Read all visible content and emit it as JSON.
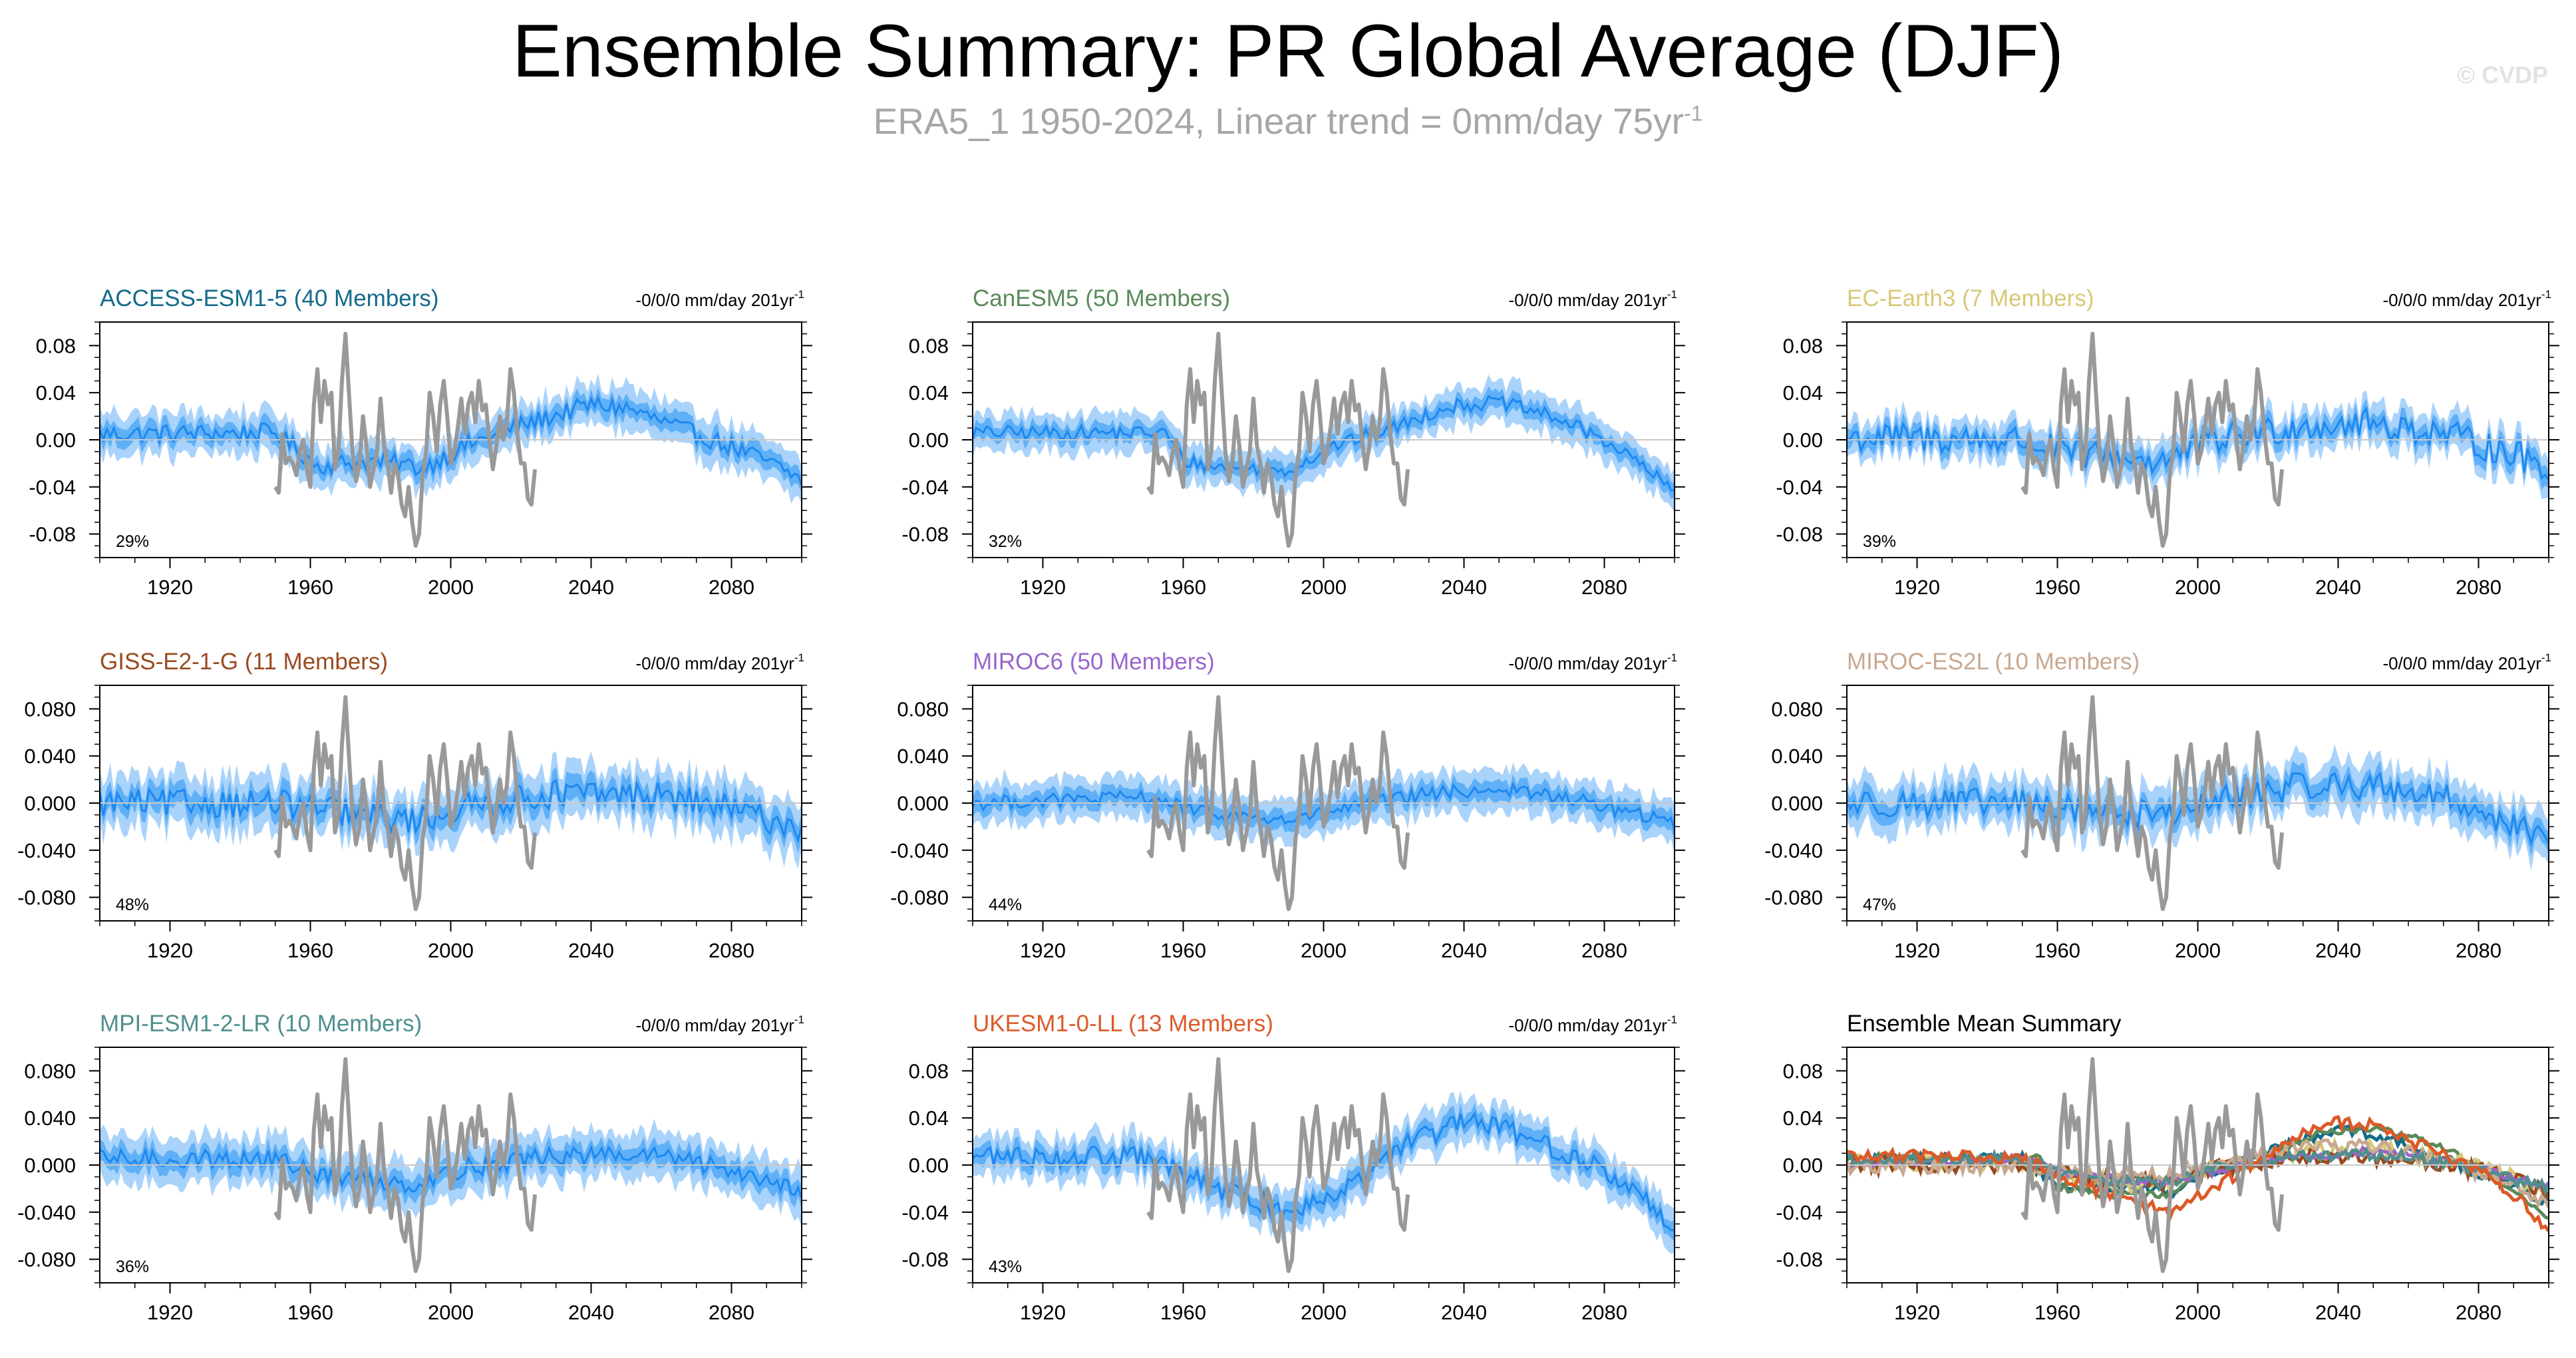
{
  "header": {
    "title": "Ensemble Summary: PR Global Average (DJF)",
    "subtitle": "ERA5_1 1950-2024, Linear trend = 0mm/day 75yr",
    "subtitle_sup": "-1",
    "watermark": "© CVDP"
  },
  "colors": {
    "outer_band": "#a9d3fb",
    "inner_band": "#5fb0f7",
    "ensemble_mean": "#1e88f0",
    "observations": "#999999",
    "zero_line": "#c8c8c8"
  },
  "chart_data": [
    {
      "type": "line",
      "title": "ACCESS-ESM1-5 (40 Members)",
      "title_color": "#146b8a",
      "trend_label": "-0/0/0 mm/day 201yr",
      "trend_sup": "-1",
      "percent": "29%",
      "ylim": [
        -0.1,
        0.1
      ],
      "xlim": [
        1900,
        2100
      ],
      "yticks": [
        "0.08",
        "0.04",
        "0.00",
        "-0.04",
        "-0.08"
      ],
      "ytick_values": [
        0.08,
        0.04,
        0,
        -0.04,
        -0.08
      ],
      "xticks": [
        "1920",
        "1960",
        "2000",
        "2040",
        "2080"
      ],
      "curve": [
        [
          1900,
          0.005
        ],
        [
          1950,
          0.006
        ],
        [
          1957,
          -0.01
        ],
        [
          1962,
          -0.022
        ],
        [
          1975,
          -0.018
        ],
        [
          1985,
          -0.02
        ],
        [
          1992,
          -0.024
        ],
        [
          2005,
          -0.004
        ],
        [
          2020,
          0.012
        ],
        [
          2040,
          0.03
        ],
        [
          2050,
          0.027
        ],
        [
          2065,
          0.01
        ],
        [
          2080,
          -0.006
        ],
        [
          2090,
          -0.018
        ],
        [
          2100,
          -0.034
        ]
      ],
      "noise": 0.008,
      "inner": 0.008,
      "outer": 0.018
    },
    {
      "type": "line",
      "title": "CanESM5 (50 Members)",
      "title_color": "#5a8a5a",
      "trend_label": "-0/0/0 mm/day 201yr",
      "trend_sup": "-1",
      "percent": "32%",
      "ylim": [
        -0.1,
        0.1
      ],
      "xlim": [
        1900,
        2100
      ],
      "yticks": [
        "0.08",
        "0.04",
        "0.00",
        "-0.04",
        "-0.08"
      ],
      "ytick_values": [
        0.08,
        0.04,
        0,
        -0.04,
        -0.08
      ],
      "xticks": [
        "1920",
        "1960",
        "2000",
        "2040",
        "2080"
      ],
      "curve": [
        [
          1900,
          0.006
        ],
        [
          1955,
          0.006
        ],
        [
          1960,
          -0.018
        ],
        [
          1975,
          -0.025
        ],
        [
          1990,
          -0.026
        ],
        [
          2003,
          -0.005
        ],
        [
          2020,
          0.01
        ],
        [
          2035,
          0.028
        ],
        [
          2050,
          0.032
        ],
        [
          2065,
          0.02
        ],
        [
          2080,
          0.0
        ],
        [
          2090,
          -0.02
        ],
        [
          2100,
          -0.045
        ]
      ],
      "noise": 0.006,
      "inner": 0.007,
      "outer": 0.016
    },
    {
      "type": "line",
      "title": "EC-Earth3 (7 Members)",
      "title_color": "#d8c878",
      "trend_label": "-0/0/0 mm/day 201yr",
      "trend_sup": "-1",
      "percent": "39%",
      "ylim": [
        -0.1,
        0.1
      ],
      "xlim": [
        1900,
        2100
      ],
      "yticks": [
        "0.08",
        "0.04",
        "0.00",
        "-0.04",
        "-0.08"
      ],
      "ytick_values": [
        0.08,
        0.04,
        0,
        -0.04,
        -0.08
      ],
      "xticks": [
        "1920",
        "1960",
        "2000",
        "2040",
        "2080"
      ],
      "curve": [
        [
          1900,
          0.002
        ],
        [
          1950,
          0.0
        ],
        [
          1960,
          -0.01
        ],
        [
          1990,
          -0.018
        ],
        [
          2005,
          0.0
        ],
        [
          2030,
          0.012
        ],
        [
          2050,
          0.014
        ],
        [
          2070,
          0.005
        ],
        [
          2090,
          -0.012
        ],
        [
          2100,
          -0.025
        ]
      ],
      "noise": 0.013,
      "inner": 0.008,
      "outer": 0.016
    },
    {
      "type": "line",
      "title": "GISS-E2-1-G (11 Members)",
      "title_color": "#9a4a1e",
      "trend_label": "-0/0/0 mm/day 201yr",
      "trend_sup": "-1",
      "percent": "48%",
      "ylim": [
        -0.1,
        0.1
      ],
      "xlim": [
        1900,
        2100
      ],
      "yticks": [
        "0.080",
        "0.040",
        "0.000",
        "-0.040",
        "-0.080"
      ],
      "ytick_values": [
        0.08,
        0.04,
        0,
        -0.04,
        -0.08
      ],
      "xticks": [
        "1920",
        "1960",
        "2000",
        "2040",
        "2080"
      ],
      "curve": [
        [
          1900,
          0.0
        ],
        [
          1950,
          0.0
        ],
        [
          1970,
          -0.008
        ],
        [
          1990,
          -0.015
        ],
        [
          2010,
          0.0
        ],
        [
          2030,
          0.008
        ],
        [
          2060,
          0.006
        ],
        [
          2080,
          -0.005
        ],
        [
          2100,
          -0.022
        ]
      ],
      "noise": 0.012,
      "inner": 0.01,
      "outer": 0.022
    },
    {
      "type": "line",
      "title": "MIROC6 (50 Members)",
      "title_color": "#9a64cc",
      "trend_label": "-0/0/0 mm/day 201yr",
      "trend_sup": "-1",
      "percent": "44%",
      "ylim": [
        -0.1,
        0.1
      ],
      "xlim": [
        1900,
        2100
      ],
      "yticks": [
        "0.080",
        "0.040",
        "0.000",
        "-0.040",
        "-0.080"
      ],
      "ytick_values": [
        0.08,
        0.04,
        0,
        -0.04,
        -0.08
      ],
      "xticks": [
        "1920",
        "1960",
        "2000",
        "2040",
        "2080"
      ],
      "curve": [
        [
          1900,
          0.0
        ],
        [
          1950,
          0.005
        ],
        [
          1965,
          -0.008
        ],
        [
          1990,
          -0.015
        ],
        [
          2010,
          -0.002
        ],
        [
          2030,
          0.008
        ],
        [
          2050,
          0.012
        ],
        [
          2070,
          0.004
        ],
        [
          2090,
          -0.01
        ],
        [
          2100,
          -0.018
        ]
      ],
      "noise": 0.006,
      "inner": 0.008,
      "outer": 0.018
    },
    {
      "type": "line",
      "title": "MIROC-ES2L (10 Members)",
      "title_color": "#c8a890",
      "trend_label": "-0/0/0 mm/day 201yr",
      "trend_sup": "-1",
      "percent": "47%",
      "ylim": [
        -0.1,
        0.1
      ],
      "xlim": [
        1900,
        2100
      ],
      "yticks": [
        "0.080",
        "0.040",
        "0.000",
        "-0.040",
        "-0.080"
      ],
      "ytick_values": [
        0.08,
        0.04,
        0,
        -0.04,
        -0.08
      ],
      "xticks": [
        "1920",
        "1960",
        "2000",
        "2040",
        "2080"
      ],
      "curve": [
        [
          1900,
          0.0
        ],
        [
          1950,
          0.0
        ],
        [
          1965,
          -0.006
        ],
        [
          1990,
          -0.01
        ],
        [
          2010,
          0.005
        ],
        [
          2030,
          0.015
        ],
        [
          2050,
          0.015
        ],
        [
          2070,
          0.005
        ],
        [
          2090,
          -0.018
        ],
        [
          2100,
          -0.035
        ]
      ],
      "noise": 0.012,
      "inner": 0.009,
      "outer": 0.02
    },
    {
      "type": "line",
      "title": "MPI-ESM1-2-LR (10 Members)",
      "title_color": "#4f8f8f",
      "trend_label": "-0/0/0 mm/day 201yr",
      "trend_sup": "-1",
      "percent": "36%",
      "ylim": [
        -0.1,
        0.1
      ],
      "xlim": [
        1900,
        2100
      ],
      "yticks": [
        "0.080",
        "0.040",
        "0.000",
        "-0.040",
        "-0.080"
      ],
      "ytick_values": [
        0.08,
        0.04,
        0,
        -0.04,
        -0.08
      ],
      "xticks": [
        "1920",
        "1960",
        "2000",
        "2040",
        "2080"
      ],
      "curve": [
        [
          1900,
          0.005
        ],
        [
          1950,
          0.005
        ],
        [
          1965,
          -0.01
        ],
        [
          1990,
          -0.016
        ],
        [
          2005,
          -0.002
        ],
        [
          2030,
          0.008
        ],
        [
          2060,
          0.008
        ],
        [
          2085,
          -0.008
        ],
        [
          2100,
          -0.02
        ]
      ],
      "noise": 0.008,
      "inner": 0.009,
      "outer": 0.02
    },
    {
      "type": "line",
      "title": "UKESM1-0-LL (13 Members)",
      "title_color": "#dc5a28",
      "trend_label": "-0/0/0 mm/day 201yr",
      "trend_sup": "-1",
      "percent": "43%",
      "ylim": [
        -0.1,
        0.1
      ],
      "xlim": [
        1900,
        2100
      ],
      "yticks": [
        "0.08",
        "0.04",
        "0.00",
        "-0.04",
        "-0.08"
      ],
      "ytick_values": [
        0.08,
        0.04,
        0,
        -0.04,
        -0.08
      ],
      "xticks": [
        "1920",
        "1960",
        "2000",
        "2040",
        "2080"
      ],
      "curve": [
        [
          1900,
          0.008
        ],
        [
          1950,
          0.006
        ],
        [
          1965,
          -0.015
        ],
        [
          1985,
          -0.035
        ],
        [
          1992,
          -0.04
        ],
        [
          2010,
          -0.01
        ],
        [
          2025,
          0.02
        ],
        [
          2040,
          0.036
        ],
        [
          2050,
          0.033
        ],
        [
          2065,
          0.015
        ],
        [
          2080,
          -0.005
        ],
        [
          2090,
          -0.025
        ],
        [
          2100,
          -0.055
        ]
      ],
      "noise": 0.009,
      "inner": 0.008,
      "outer": 0.018
    },
    {
      "type": "line",
      "title": "Ensemble Mean Summary",
      "title_color": "#000000",
      "trend_label": "",
      "trend_sup": "",
      "percent": "",
      "ylim": [
        -0.1,
        0.1
      ],
      "xlim": [
        1900,
        2100
      ],
      "yticks": [
        "0.08",
        "0.04",
        "0.00",
        "-0.04",
        "-0.08"
      ],
      "ytick_values": [
        0.08,
        0.04,
        0,
        -0.04,
        -0.08
      ],
      "xticks": [
        "1920",
        "1960",
        "2000",
        "2040",
        "2080"
      ],
      "summary": true
    }
  ],
  "observations_ERA5_1": {
    "years": [
      1950,
      1951,
      1952,
      1953,
      1954,
      1955,
      1956,
      1957,
      1958,
      1959,
      1960,
      1961,
      1962,
      1963,
      1964,
      1965,
      1966,
      1967,
      1968,
      1969,
      1970,
      1971,
      1972,
      1973,
      1974,
      1975,
      1976,
      1977,
      1978,
      1979,
      1980,
      1981,
      1982,
      1983,
      1984,
      1985,
      1986,
      1987,
      1988,
      1989,
      1990,
      1991,
      1992,
      1993,
      1994,
      1995,
      1996,
      1997,
      1998,
      1999,
      2000,
      2001,
      2002,
      2003,
      2004,
      2005,
      2006,
      2007,
      2008,
      2009,
      2010,
      2011,
      2012,
      2013,
      2014,
      2015,
      2016,
      2017,
      2018,
      2019,
      2020,
      2021,
      2022,
      2023,
      2024
    ],
    "values": [
      -0.04,
      -0.045,
      0.005,
      -0.02,
      -0.015,
      -0.02,
      -0.03,
      -0.01,
      0.0,
      -0.025,
      -0.04,
      0.03,
      0.06,
      0.015,
      0.05,
      0.03,
      0.04,
      -0.025,
      -0.01,
      0.05,
      0.09,
      0.04,
      -0.01,
      -0.035,
      -0.02,
      0.02,
      -0.005,
      -0.04,
      -0.025,
      -0.01,
      0.035,
      -0.005,
      -0.02,
      -0.045,
      -0.02,
      -0.03,
      -0.055,
      -0.065,
      -0.04,
      -0.07,
      -0.09,
      -0.08,
      -0.03,
      -0.01,
      0.04,
      0.02,
      -0.01,
      0.03,
      0.05,
      0.02,
      -0.02,
      -0.01,
      0.01,
      0.035,
      0.005,
      0.03,
      0.04,
      0.015,
      0.05,
      0.025,
      0.03,
      0.0,
      -0.025,
      -0.005,
      0.02,
      0.0,
      0.015,
      0.06,
      0.04,
      0.005,
      -0.02,
      -0.02,
      -0.05,
      -0.055,
      -0.025
    ]
  }
}
